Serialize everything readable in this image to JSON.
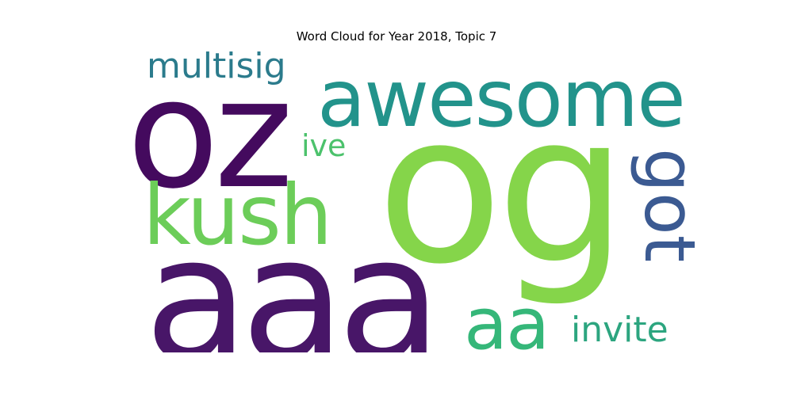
{
  "title": "Word Cloud for Year 2018, Topic 7",
  "words": [
    {
      "text": "oz",
      "color": "#440a5e"
    },
    {
      "text": "awesome",
      "color": "#22938b"
    },
    {
      "text": "multisig",
      "color": "#2b7b8c"
    },
    {
      "text": "og",
      "color": "#85d54a"
    },
    {
      "text": "ive",
      "color": "#4cc26c"
    },
    {
      "text": "kush",
      "color": "#6ccd59"
    },
    {
      "text": "got",
      "color": "#3b5a92"
    },
    {
      "text": "aaa",
      "color": "#481668"
    },
    {
      "text": "aa",
      "color": "#35b779"
    },
    {
      "text": "invite",
      "color": "#2ca57f"
    }
  ]
}
